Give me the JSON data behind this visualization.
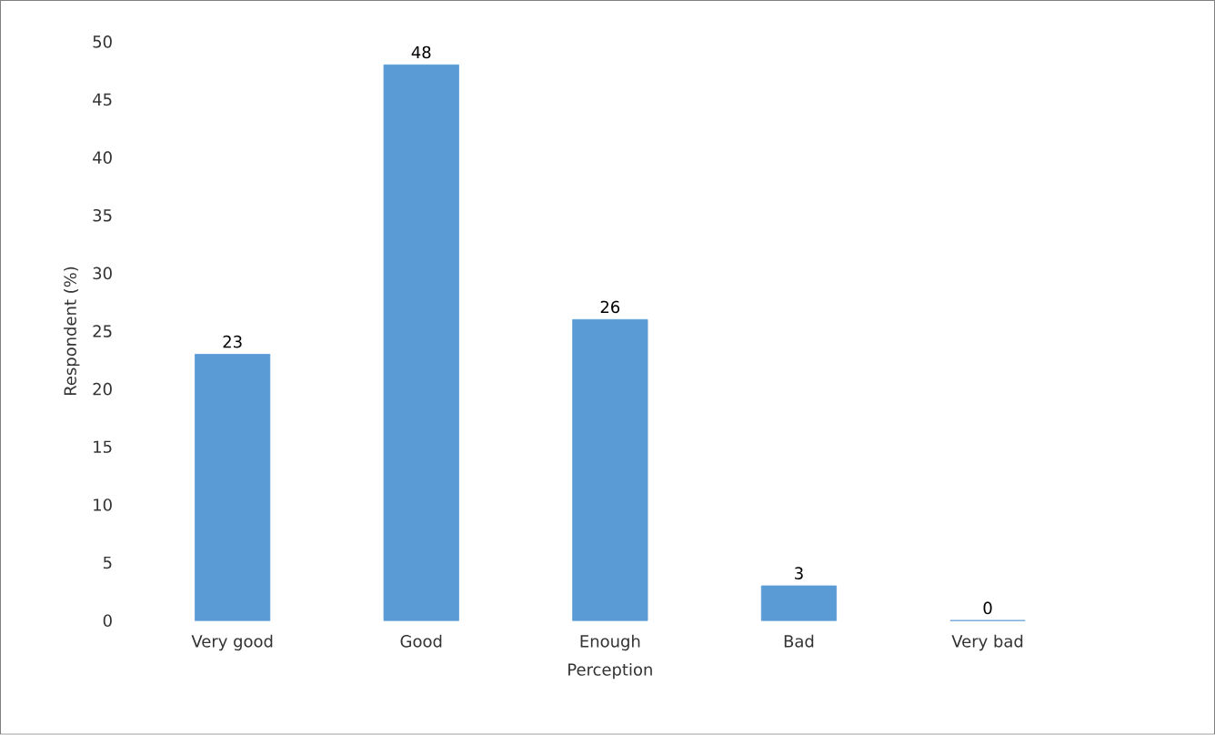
{
  "chart_data": {
    "type": "bar",
    "xlabel": "Perception",
    "ylabel": "Respondent (%)",
    "categories": [
      "Very good",
      "Good",
      "Enough",
      "Bad",
      "Very bad"
    ],
    "values": [
      23,
      48,
      26,
      3,
      0
    ],
    "color": "#5b9bd5",
    "ylim": [
      0,
      50
    ],
    "yticks": [
      0,
      5,
      10,
      15,
      20,
      25,
      30,
      35,
      40,
      45,
      50
    ],
    "data_labels": true,
    "grid": false
  }
}
